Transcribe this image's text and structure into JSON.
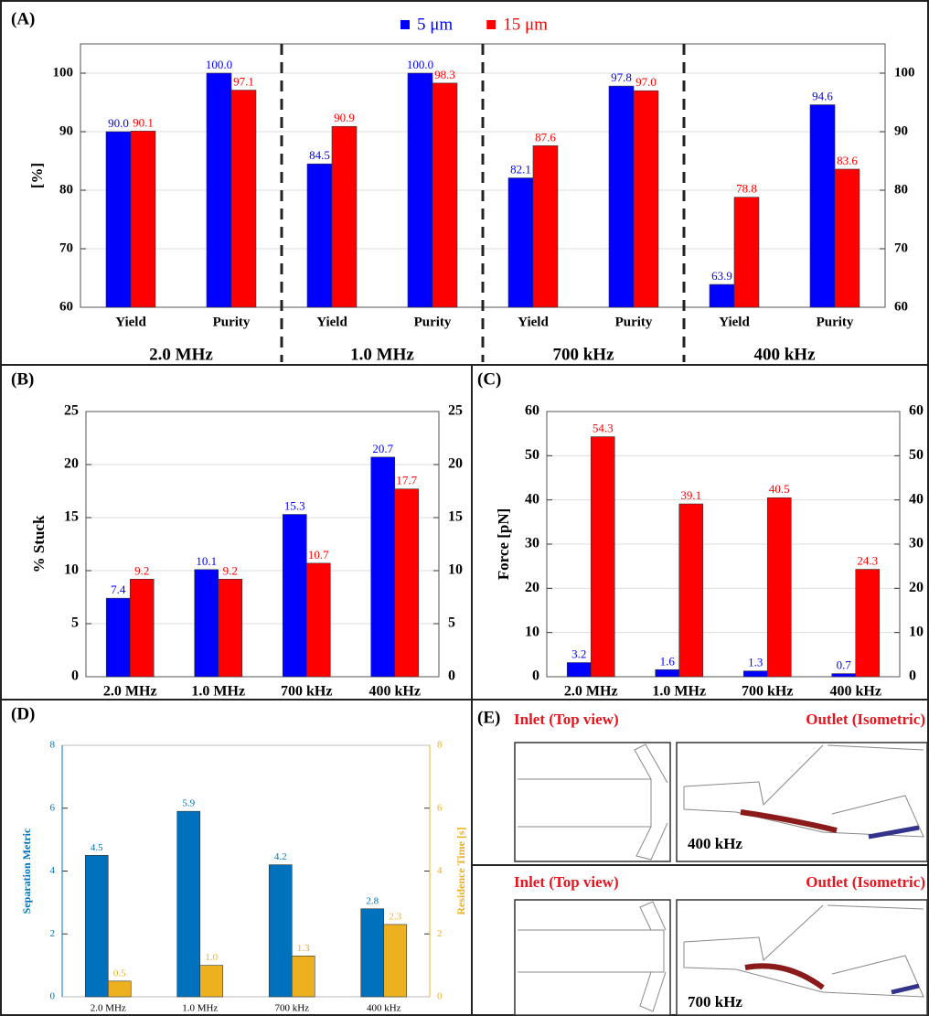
{
  "chart_data": [
    {
      "type": "bar",
      "panel": "(A)",
      "ylabel": "[%]",
      "categories": [
        "Yield",
        "Purity",
        "Yield",
        "Purity",
        "Yield",
        "Purity",
        "Yield",
        "Purity"
      ],
      "groups": [
        "2.0 MHz",
        "1.0 MHz",
        "700 kHz",
        "400 kHz"
      ],
      "series": [
        {
          "name": "5 μm",
          "color": "#0000ff",
          "values": [
            90,
            100,
            84.5,
            100,
            82.1,
            97.8,
            63.9,
            94.6
          ],
          "value_labels": [
            "90.0",
            "100.0",
            "84.5",
            "100.0",
            "82.1",
            "97.8",
            "63.9",
            "94.6"
          ]
        },
        {
          "name": "15 μm",
          "color": "#ff0000",
          "values": [
            90.1,
            97.1,
            90.9,
            98.3,
            87.6,
            97,
            78.8,
            83.6
          ],
          "value_labels": [
            "90.1",
            "97.1",
            "90.9",
            "98.3",
            "87.6",
            "97.0",
            "78.8",
            "83.6"
          ]
        }
      ],
      "ylim": [
        60,
        105
      ],
      "yticks": [
        60,
        70,
        80,
        90,
        100
      ],
      "mirror_ticks": true,
      "grid": true,
      "legend": "top"
    },
    {
      "type": "bar",
      "panel": "(B)",
      "ylabel": "% Stuck",
      "categories": [
        "2.0 MHz",
        "1.0 MHz",
        "700 kHz",
        "400 kHz"
      ],
      "series": [
        {
          "name": "5 μm",
          "color": "#0000ff",
          "values": [
            7.4,
            10.1,
            15.3,
            20.7
          ]
        },
        {
          "name": "15 μm",
          "color": "#ff0000",
          "values": [
            9.2,
            9.2,
            10.7,
            17.7
          ]
        }
      ],
      "ylim": [
        0,
        25
      ],
      "yticks": [
        0,
        5,
        10,
        15,
        20,
        25
      ],
      "mirror_ticks": true,
      "grid": true
    },
    {
      "type": "bar",
      "panel": "(C)",
      "ylabel": "Force [pN]",
      "categories": [
        "2.0 MHz",
        "1.0 MHz",
        "700 kHz",
        "400 kHz"
      ],
      "series": [
        {
          "name": "5 μm",
          "color": "#0000ff",
          "values": [
            3.2,
            1.6,
            1.3,
            0.7
          ]
        },
        {
          "name": "15 μm",
          "color": "#ff0000",
          "values": [
            54.3,
            39.1,
            40.5,
            24.3
          ]
        }
      ],
      "ylim": [
        0,
        60
      ],
      "yticks": [
        0,
        10,
        20,
        30,
        40,
        50,
        60
      ],
      "mirror_ticks": true,
      "grid": true
    },
    {
      "type": "bar",
      "panel": "(D)",
      "ylabel": "Separation Metric",
      "y2label": "Residence Time [s]",
      "categories": [
        "2.0 MHz",
        "1.0 MHz",
        "700 kHz",
        "400 kHz"
      ],
      "series": [
        {
          "color": "#0072bd",
          "values": [
            4.5,
            5.9,
            4.2,
            2.8
          ]
        },
        {
          "color": "#edb120",
          "values": [
            0.5,
            1,
            1.3,
            2.3
          ],
          "value_labels": [
            "0.5",
            "1.0",
            "1.3",
            "2.3"
          ],
          "axis": "y2"
        }
      ],
      "ylim": [
        0,
        8
      ],
      "yticks": [
        0,
        2,
        4,
        6,
        8
      ],
      "y2lim": [
        0,
        8
      ],
      "y2ticks": [
        0,
        2,
        4,
        6,
        8
      ],
      "grid": false
    }
  ],
  "panel_e": {
    "label": "(E)",
    "views": [
      {
        "inlet": "Inlet (Top view)",
        "outlet": "Outlet (Isometric)",
        "frequency": "400 kHz"
      },
      {
        "inlet": "Inlet (Top view)",
        "outlet": "Outlet (Isometric)",
        "frequency": "700 kHz"
      }
    ]
  }
}
